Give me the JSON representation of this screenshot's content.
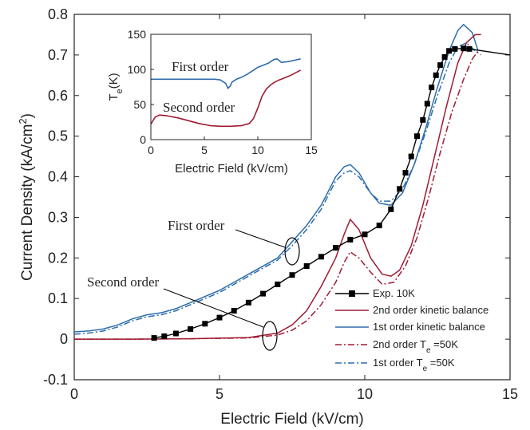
{
  "chart_data": [
    {
      "type": "line",
      "xlabel": "Electric Field (kV/cm)",
      "ylabel": "Current Density (kA/cm",
      "ylabel_sup": "2",
      "ylabel_end": ")",
      "xlim": [
        0,
        15
      ],
      "ylim": [
        -0.1,
        0.8
      ],
      "xticks": [
        0,
        5,
        10,
        15
      ],
      "yticks": [
        -0.1,
        0,
        0.1,
        0.2,
        0.3,
        0.4,
        0.5,
        0.6,
        0.7,
        0.8
      ],
      "xtick_labels": [
        "0",
        "5",
        "10",
        "15"
      ],
      "ytick_labels": [
        "-0.1",
        "0",
        "0.1",
        "0.2",
        "0.3",
        "0.4",
        "0.5",
        "0.6",
        "0.7",
        "0.8"
      ],
      "grid": false,
      "legend_position": "bottom-right",
      "annotations": {
        "first_order": "First order",
        "second_order": "Second order"
      },
      "series": [
        {
          "name": "Exp. 10K",
          "color": "#000000",
          "style": "solid-square-markers",
          "x": [
            2.75,
            3.1,
            3.5,
            4.0,
            4.5,
            5.0,
            5.5,
            6.0,
            6.5,
            7.0,
            7.5,
            8.0,
            8.5,
            9.0,
            9.5,
            10.0,
            10.5,
            10.9,
            11.2,
            11.4,
            11.6,
            11.8,
            12.0,
            12.15,
            12.3,
            12.45,
            12.6,
            12.75,
            12.9,
            13.1,
            13.4,
            13.6,
            15.0
          ],
          "y": [
            0.003,
            0.007,
            0.014,
            0.025,
            0.038,
            0.053,
            0.07,
            0.09,
            0.112,
            0.135,
            0.158,
            0.18,
            0.203,
            0.225,
            0.245,
            0.258,
            0.28,
            0.32,
            0.37,
            0.41,
            0.45,
            0.5,
            0.54,
            0.58,
            0.62,
            0.65,
            0.675,
            0.695,
            0.71,
            0.715,
            0.716,
            0.715,
            0.7
          ]
        },
        {
          "name": "2nd order kinetic balance",
          "color": "#9e1b32",
          "style": "solid",
          "x": [
            0,
            2,
            4,
            6,
            7,
            7.5,
            8,
            8.5,
            9.0,
            9.3,
            9.5,
            9.8,
            10.2,
            10.6,
            10.9,
            11.2,
            11.6,
            12.0,
            12.4,
            12.8,
            13.2,
            13.5,
            13.8,
            14.0
          ],
          "y": [
            0,
            0,
            0.001,
            0.004,
            0.015,
            0.035,
            0.07,
            0.13,
            0.2,
            0.26,
            0.295,
            0.27,
            0.2,
            0.16,
            0.155,
            0.17,
            0.23,
            0.33,
            0.45,
            0.57,
            0.68,
            0.73,
            0.75,
            0.75
          ]
        },
        {
          "name": "1st order kinetic balance",
          "color": "#2e6dab",
          "style": "solid",
          "x": [
            0,
            0.5,
            1.0,
            1.5,
            2.0,
            2.5,
            3.0,
            3.5,
            4.0,
            5.0,
            6.0,
            7.0,
            7.5,
            8.0,
            8.5,
            9.0,
            9.3,
            9.5,
            9.8,
            10.2,
            10.5,
            10.9,
            11.3,
            11.7,
            12.1,
            12.5,
            12.9,
            13.2,
            13.4,
            13.7,
            13.9
          ],
          "y": [
            0.018,
            0.02,
            0.025,
            0.035,
            0.05,
            0.06,
            0.065,
            0.075,
            0.09,
            0.12,
            0.16,
            0.2,
            0.24,
            0.28,
            0.33,
            0.4,
            0.425,
            0.43,
            0.41,
            0.36,
            0.335,
            0.33,
            0.36,
            0.43,
            0.52,
            0.62,
            0.71,
            0.76,
            0.775,
            0.755,
            0.71
          ]
        },
        {
          "name": "2nd order T",
          "name_sub": "e",
          "name_suffix": " =50K",
          "color": "#9e1b32",
          "style": "dashdot",
          "x": [
            0,
            2,
            4,
            6,
            7,
            7.5,
            8,
            8.5,
            9.0,
            9.3,
            9.5,
            9.8,
            10.2,
            10.6,
            11.0,
            11.4,
            11.8,
            12.2,
            12.6,
            13.0,
            13.4,
            13.7,
            13.9
          ],
          "y": [
            0,
            0,
            0.001,
            0.003,
            0.01,
            0.022,
            0.045,
            0.085,
            0.14,
            0.19,
            0.215,
            0.2,
            0.165,
            0.135,
            0.14,
            0.18,
            0.25,
            0.35,
            0.46,
            0.56,
            0.64,
            0.69,
            0.71
          ]
        },
        {
          "name": "1st order T",
          "name_sub": "e",
          "name_suffix": " =50K",
          "color": "#2e6dab",
          "style": "dashdot",
          "x": [
            0,
            0.5,
            1.0,
            1.5,
            2.0,
            2.5,
            3.0,
            3.5,
            4.0,
            5.0,
            6.0,
            7.0,
            7.5,
            8.0,
            8.5,
            9.0,
            9.3,
            9.5,
            9.8,
            10.2,
            10.5,
            10.9,
            11.3,
            11.7,
            12.1,
            12.5,
            12.9,
            13.2,
            13.5,
            13.8,
            14.0
          ],
          "y": [
            0.012,
            0.015,
            0.02,
            0.03,
            0.045,
            0.055,
            0.06,
            0.07,
            0.085,
            0.115,
            0.155,
            0.195,
            0.23,
            0.27,
            0.32,
            0.39,
            0.41,
            0.415,
            0.4,
            0.36,
            0.34,
            0.34,
            0.37,
            0.43,
            0.51,
            0.6,
            0.68,
            0.72,
            0.73,
            0.71,
            0.7
          ]
        }
      ]
    },
    {
      "type": "line",
      "inset": true,
      "xlabel": "Electric Field (kV/cm)",
      "ylabel": "T",
      "ylabel_sub": "e",
      "ylabel_end": "(K)",
      "xlim": [
        0,
        15
      ],
      "ylim": [
        0,
        150
      ],
      "xticks": [
        0,
        5,
        10,
        15
      ],
      "yticks": [
        0,
        50,
        100,
        150
      ],
      "xtick_labels": [
        "0",
        "5",
        "10",
        "15"
      ],
      "ytick_labels": [
        "0",
        "50",
        "100",
        "150"
      ],
      "annotations": {
        "first_order": "First order",
        "second_order": "Second order"
      },
      "series": [
        {
          "color": "#2e6dab",
          "x": [
            0,
            1,
            2,
            3,
            4,
            5,
            6,
            6.5,
            7.0,
            7.2,
            7.4,
            7.6,
            8.0,
            8.5,
            9.0,
            9.5,
            10.0,
            10.5,
            11.0,
            11.5,
            11.8,
            12.2,
            12.8,
            13.4,
            14.0
          ],
          "y": [
            86,
            86,
            86,
            86,
            86,
            86,
            86,
            85,
            80,
            73,
            76,
            82,
            86,
            89,
            93,
            98,
            103,
            106,
            109,
            114,
            115,
            110,
            111,
            113,
            115
          ]
        },
        {
          "color": "#9e1b32",
          "x": [
            0,
            0.4,
            0.8,
            1.5,
            2.5,
            3.5,
            4.5,
            5.5,
            6.5,
            7.5,
            8.5,
            9.2,
            9.6,
            10.0,
            10.4,
            10.8,
            11.2,
            11.6,
            12.0,
            12.5,
            13.0,
            13.5,
            14.0
          ],
          "y": [
            22,
            32,
            35,
            34,
            31,
            27,
            23,
            20,
            19,
            19,
            20,
            23,
            30,
            45,
            62,
            72,
            78,
            82,
            85,
            88,
            91,
            95,
            99
          ]
        }
      ]
    }
  ]
}
